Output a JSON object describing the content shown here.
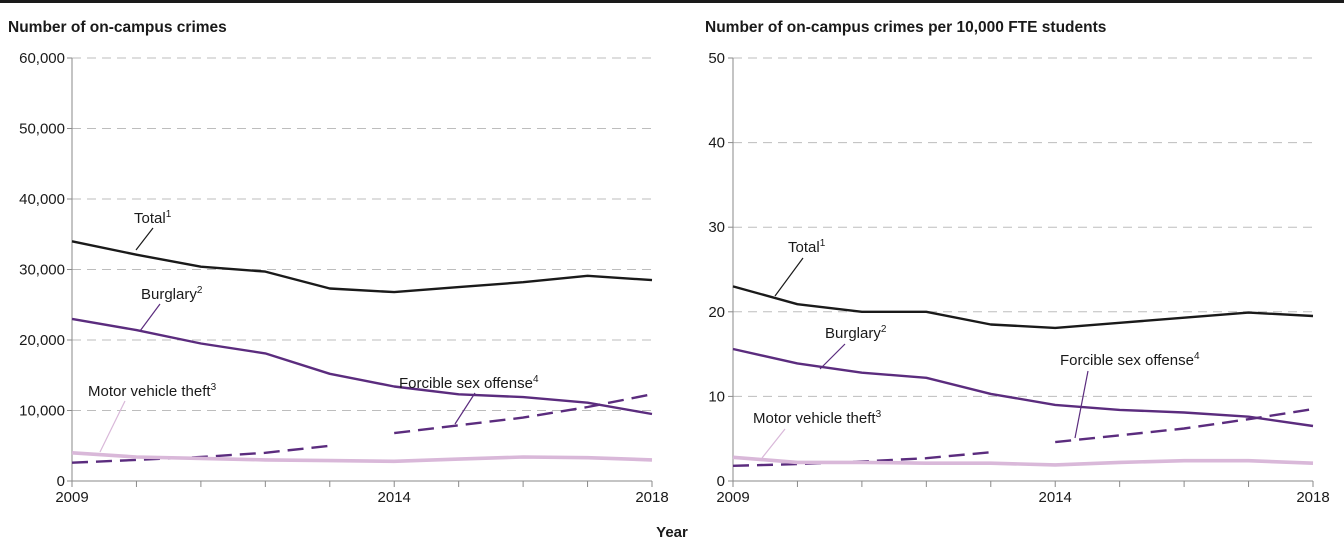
{
  "x_axis_title": "Year",
  "colors": {
    "total": "#1a1a1a",
    "burglary": "#5b2c7e",
    "sex_offense": "#5b2c7e",
    "motor_vehicle": "#d9b8d9",
    "grid": "#bdbdbd",
    "axis": "#8a8a8a"
  },
  "chart_data": [
    {
      "type": "line",
      "title": "Number of on-campus crimes",
      "xlabel": "Year",
      "ylabel": "",
      "xlim": [
        2009,
        2018
      ],
      "ylim": [
        0,
        60000
      ],
      "x_ticks": [
        "2009",
        "2014",
        "2018"
      ],
      "y_ticks": [
        "0",
        "10,000",
        "20,000",
        "30,000",
        "40,000",
        "50,000",
        "60,000"
      ],
      "grid": "horizontal dashed",
      "x": [
        2009,
        2010,
        2011,
        2012,
        2013,
        2014,
        2015,
        2016,
        2017,
        2018
      ],
      "series": [
        {
          "name": "Total",
          "note": "1",
          "style": "solid",
          "values": [
            34000,
            32100,
            30400,
            29700,
            27300,
            26800,
            27500,
            28200,
            29100,
            28500
          ]
        },
        {
          "name": "Burglary",
          "note": "2",
          "style": "solid",
          "values": [
            23000,
            21400,
            19500,
            18100,
            15200,
            13400,
            12300,
            11900,
            11100,
            9500
          ]
        },
        {
          "name": "Forcible sex offense",
          "note": "4",
          "style": "dashed",
          "values": [
            2600,
            3000,
            3400,
            4000,
            5000,
            null,
            null,
            null,
            null,
            null
          ]
        },
        {
          "name": "Forcible sex offense",
          "note": "4",
          "style": "dashed",
          "values": [
            null,
            null,
            null,
            null,
            null,
            6800,
            7900,
            9000,
            10500,
            12300
          ]
        },
        {
          "name": "Motor vehicle theft",
          "note": "3",
          "style": "solid",
          "values": [
            4000,
            3400,
            3200,
            3000,
            2900,
            2800,
            3100,
            3400,
            3300,
            3000
          ]
        }
      ]
    },
    {
      "type": "line",
      "title": "Number of on-campus crimes per 10,000 FTE students",
      "xlabel": "Year",
      "ylabel": "",
      "xlim": [
        2009,
        2018
      ],
      "ylim": [
        0,
        50
      ],
      "x_ticks": [
        "2009",
        "2014",
        "2018"
      ],
      "y_ticks": [
        "0",
        "10",
        "20",
        "30",
        "40",
        "50"
      ],
      "grid": "horizontal dashed",
      "x": [
        2009,
        2010,
        2011,
        2012,
        2013,
        2014,
        2015,
        2016,
        2017,
        2018
      ],
      "series": [
        {
          "name": "Total",
          "note": "1",
          "style": "solid",
          "values": [
            23.0,
            20.9,
            20.0,
            20.0,
            18.5,
            18.1,
            18.7,
            19.3,
            19.9,
            19.5
          ]
        },
        {
          "name": "Burglary",
          "note": "2",
          "style": "solid",
          "values": [
            15.6,
            13.9,
            12.8,
            12.2,
            10.3,
            9.0,
            8.4,
            8.1,
            7.6,
            6.5
          ]
        },
        {
          "name": "Forcible sex offense",
          "note": "4",
          "style": "dashed",
          "values": [
            1.8,
            2.0,
            2.3,
            2.7,
            3.4,
            null,
            null,
            null,
            null,
            null
          ]
        },
        {
          "name": "Forcible sex offense",
          "note": "4",
          "style": "dashed",
          "values": [
            null,
            null,
            null,
            null,
            null,
            4.6,
            5.4,
            6.2,
            7.3,
            8.5
          ]
        },
        {
          "name": "Motor vehicle theft",
          "note": "3",
          "style": "solid",
          "values": [
            2.8,
            2.2,
            2.2,
            2.1,
            2.1,
            1.9,
            2.2,
            2.4,
            2.4,
            2.1
          ]
        }
      ]
    }
  ]
}
